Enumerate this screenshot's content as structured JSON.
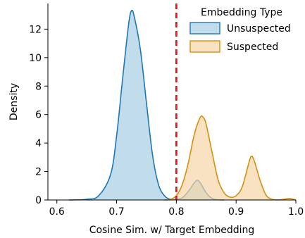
{
  "chart_data": {
    "type": "area",
    "xlabel": "Cosine Sim. w/ Target Embedding",
    "ylabel": "Density",
    "xlim": [
      0.585,
      1.0
    ],
    "ylim": [
      0,
      13.8
    ],
    "xticks": [
      "0.6",
      "0.7",
      "0.8",
      "0.9",
      "1.0"
    ],
    "yticks": [
      "0",
      "2",
      "4",
      "6",
      "8",
      "10",
      "12"
    ],
    "grid": false,
    "legend_title": "Embedding Type",
    "legend_position": "top-right",
    "threshold": {
      "x": 0.8,
      "color": "#e31a1c",
      "style": "dashed"
    },
    "series": [
      {
        "name": "Unsuspected",
        "stroke": "#1f77b4",
        "fill": "#a6cde2",
        "x": [
          0.62,
          0.65,
          0.67,
          0.69,
          0.7,
          0.71,
          0.72,
          0.725,
          0.73,
          0.74,
          0.75,
          0.76,
          0.77,
          0.78,
          0.79,
          0.8,
          0.81,
          0.82,
          0.83,
          0.835,
          0.84,
          0.85,
          0.86,
          0.87,
          0.88
        ],
        "y": [
          0.0,
          0.05,
          0.3,
          1.8,
          4.5,
          8.5,
          12.3,
          13.3,
          12.8,
          10.5,
          6.8,
          3.2,
          1.1,
          0.3,
          0.05,
          0.05,
          0.15,
          0.6,
          1.2,
          1.38,
          1.2,
          0.5,
          0.1,
          0.02,
          0.0
        ]
      },
      {
        "name": "Suspected",
        "stroke": "#d4900f",
        "fill": "#f5d6a7",
        "x": [
          0.78,
          0.79,
          0.8,
          0.81,
          0.82,
          0.83,
          0.84,
          0.845,
          0.85,
          0.86,
          0.87,
          0.88,
          0.89,
          0.9,
          0.91,
          0.92,
          0.925,
          0.93,
          0.94,
          0.95,
          0.96,
          0.97,
          0.98,
          0.99,
          1.0
        ],
        "y": [
          0.0,
          0.05,
          0.3,
          1.1,
          2.6,
          4.6,
          5.8,
          5.8,
          5.3,
          3.3,
          1.4,
          0.5,
          0.2,
          0.3,
          0.9,
          2.4,
          3.05,
          2.8,
          1.4,
          0.35,
          0.05,
          0.0,
          0.05,
          0.1,
          0.0
        ]
      }
    ]
  }
}
